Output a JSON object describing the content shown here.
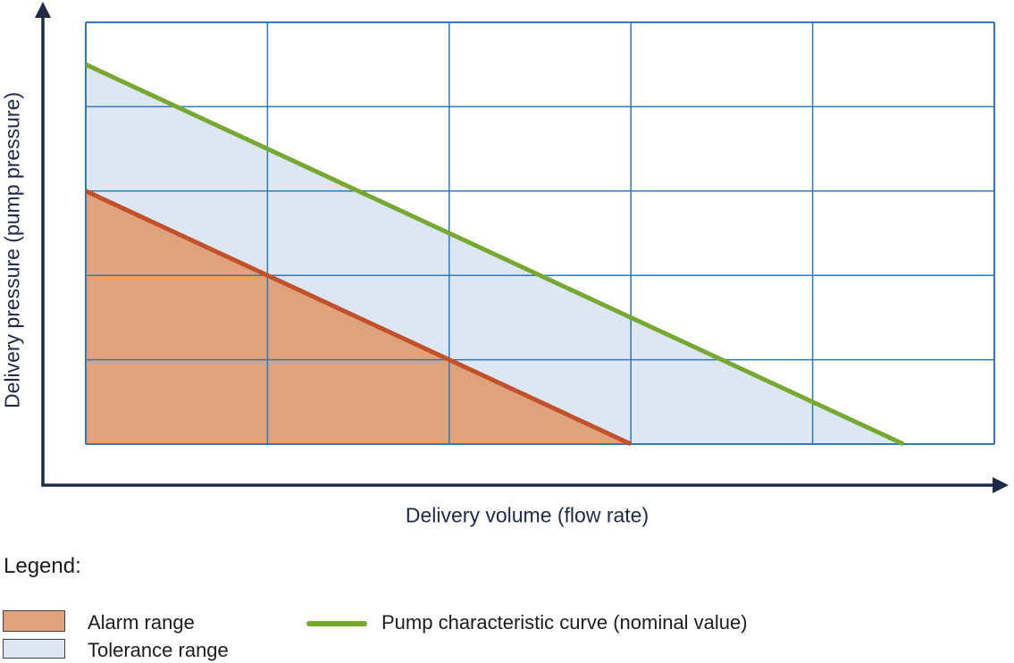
{
  "figure": {
    "background": "#ffffff",
    "axis_color": "#1e2a47"
  },
  "chart_data": {
    "type": "area",
    "title": "",
    "xlabel": "Delivery volume (flow rate)",
    "ylabel": "Delivery pressure (pump pressure)",
    "x_range": [
      0,
      5
    ],
    "y_range": [
      0,
      5
    ],
    "axes": {
      "style": "arrows",
      "ticks": "none",
      "tick_labels": "none"
    },
    "grid": {
      "show": true,
      "columns": 5,
      "rows": 5,
      "color": "#2e79b9"
    },
    "series": [
      {
        "name": "Tolerance range",
        "type": "area",
        "points": [
          [
            0,
            4.5
          ],
          [
            4.5,
            0
          ],
          [
            0,
            0
          ]
        ],
        "fill_color": "#dde6f3"
      },
      {
        "name": "Alarm range",
        "type": "area",
        "points": [
          [
            0,
            3
          ],
          [
            3,
            0
          ],
          [
            0,
            0
          ]
        ],
        "fill_color": "#e0a27c",
        "edge_points": [
          [
            0,
            3
          ],
          [
            3,
            0
          ]
        ],
        "edge_color": "#c0512b",
        "edge_width": 5
      },
      {
        "name": "Pump characteristic curve (nominal value)",
        "type": "line",
        "points": [
          [
            0,
            4.5
          ],
          [
            4.5,
            0
          ]
        ],
        "color": "#76a832",
        "width": 5
      }
    ],
    "legend_position": "bottom-left"
  },
  "legend": {
    "title": "Legend:",
    "items": [
      {
        "label": "Alarm range",
        "swatch": "rect",
        "fill": "#e0a27c",
        "border": "#404040"
      },
      {
        "label": "Tolerance range",
        "swatch": "rect",
        "fill": "#dde6f3",
        "border": "#404040"
      },
      {
        "label": "Pump characteristic curve (nominal value)",
        "swatch": "line",
        "color": "#76a832"
      }
    ]
  }
}
